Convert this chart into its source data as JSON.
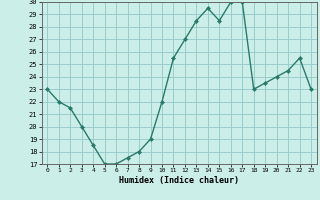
{
  "x": [
    0,
    1,
    2,
    3,
    4,
    5,
    6,
    7,
    8,
    9,
    10,
    11,
    12,
    13,
    14,
    15,
    16,
    17,
    18,
    19,
    20,
    21,
    22,
    23
  ],
  "y": [
    23,
    22,
    21.5,
    20,
    18.5,
    17,
    17,
    17.5,
    18,
    19,
    22,
    25.5,
    27,
    28.5,
    29.5,
    28.5,
    30,
    30,
    23,
    23.5,
    24,
    24.5,
    25.5,
    23
  ],
  "xlabel": "Humidex (Indice chaleur)",
  "ylim": [
    17,
    30
  ],
  "xlim": [
    -0.5,
    23.5
  ],
  "yticks": [
    17,
    18,
    19,
    20,
    21,
    22,
    23,
    24,
    25,
    26,
    27,
    28,
    29,
    30
  ],
  "xticks": [
    0,
    1,
    2,
    3,
    4,
    5,
    6,
    7,
    8,
    9,
    10,
    11,
    12,
    13,
    14,
    15,
    16,
    17,
    18,
    19,
    20,
    21,
    22,
    23
  ],
  "line_color": "#2a7a6a",
  "bg_color": "#cceee8",
  "grid_color": "#99cccc"
}
